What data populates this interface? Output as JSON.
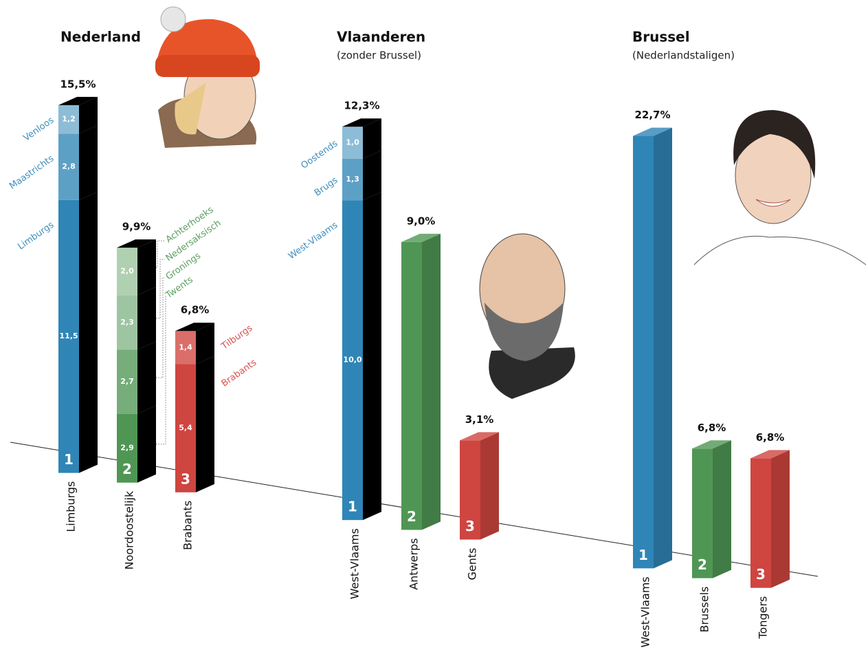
{
  "chart_data": [
    {
      "type": "bar",
      "title": "Nederland",
      "categories": [
        "Limburgs",
        "Noordoostelijk",
        "Brabants"
      ],
      "values": [
        15.5,
        9.9,
        6.8
      ],
      "value_labels": [
        "15,5%",
        "9,9%",
        "6,8%"
      ],
      "ranks": [
        1,
        2,
        3
      ],
      "colors": [
        "#2f85b6",
        "#4f9654",
        "#cf4540"
      ],
      "stacks": [
        {
          "names": [
            "Limburgs",
            "Maastrichts",
            "Venloos"
          ],
          "values": [
            11.5,
            2.8,
            1.2
          ],
          "value_labels": [
            "11,5",
            "2,8",
            "1,2"
          ]
        },
        {
          "names": [
            "Twents",
            "Gronings",
            "Nedersaksisch",
            "Achterhoeks"
          ],
          "values": [
            2.9,
            2.7,
            2.3,
            2.0
          ],
          "value_labels": [
            "2,9",
            "2,7",
            "2,3",
            "2,0"
          ]
        },
        {
          "names": [
            "Brabants",
            "Tilburgs"
          ],
          "values": [
            5.4,
            1.4
          ],
          "value_labels": [
            "5,4",
            "1,4"
          ]
        }
      ]
    },
    {
      "type": "bar",
      "title": "Vlaanderen",
      "subtitle": "(zonder Brussel)",
      "categories": [
        "West-Vlaams",
        "Antwerps",
        "Gents"
      ],
      "values": [
        12.3,
        9.0,
        3.1
      ],
      "value_labels": [
        "12,3%",
        "9,0%",
        "3,1%"
      ],
      "ranks": [
        1,
        2,
        3
      ],
      "colors": [
        "#2f85b6",
        "#4f9654",
        "#cf4540"
      ],
      "stacks": [
        {
          "names": [
            "West-Vlaams",
            "Brugs",
            "Oostends"
          ],
          "values": [
            10.0,
            1.3,
            1.0
          ],
          "value_labels": [
            "10,0",
            "1,3",
            "1,0"
          ]
        },
        null,
        null
      ]
    },
    {
      "type": "bar",
      "title": "Brussel",
      "subtitle": "(Nederlandstaligen)",
      "categories": [
        "West-Vlaams",
        "Brussels",
        "Tongers"
      ],
      "values": [
        22.7,
        6.8,
        6.8
      ],
      "value_labels": [
        "22,7%",
        "6,8%",
        "6,8%"
      ],
      "ranks": [
        1,
        2,
        3
      ],
      "colors": [
        "#2f85b6",
        "#4f9654",
        "#cf4540"
      ]
    }
  ]
}
